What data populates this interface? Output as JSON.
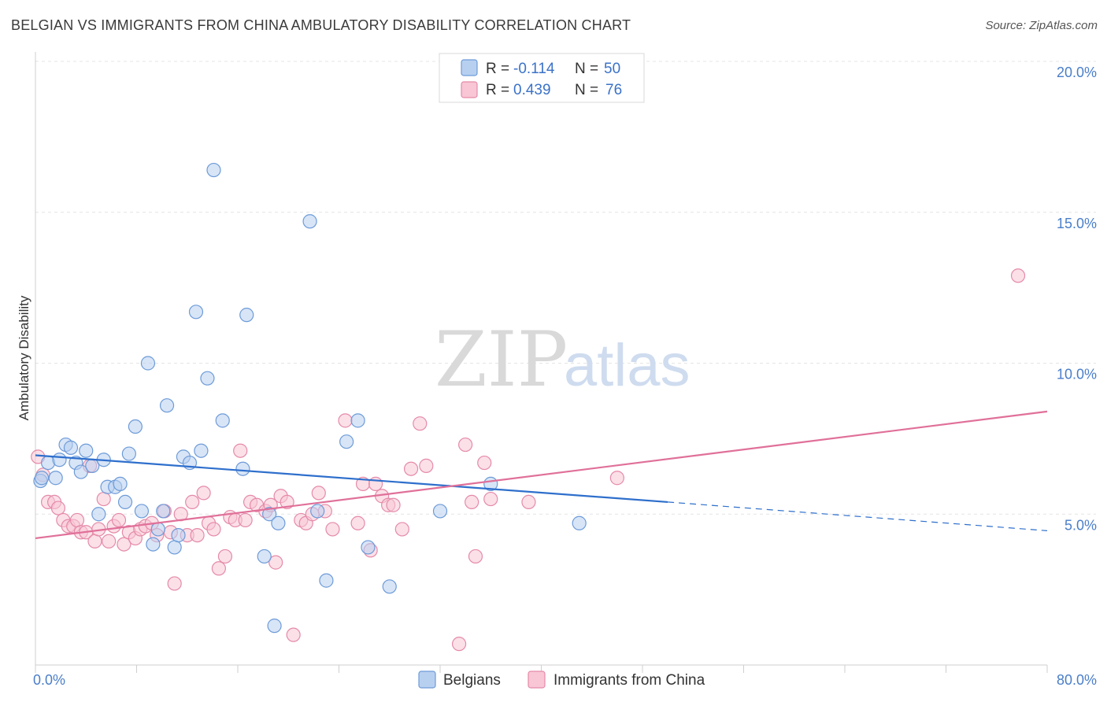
{
  "title": "BELGIAN VS IMMIGRANTS FROM CHINA AMBULATORY DISABILITY CORRELATION CHART",
  "source": "Source: ZipAtlas.com",
  "watermark": {
    "zip": "ZIP",
    "atlas": "atlas"
  },
  "legend": {
    "r_label": "R =",
    "n_label": "N =",
    "rows": [
      {
        "r": "-0.114",
        "n": "50"
      },
      {
        "r": "0.439",
        "n": "76"
      }
    ]
  },
  "colors": {
    "belgians_fill": "#b8d0f0",
    "belgians_stroke": "#6d9bd8",
    "belgians_line": "#2e6fcc",
    "china_fill": "#f8c6d5",
    "china_stroke": "#e58aa8",
    "china_line": "#e07099",
    "axis_text": "#4a7ec9",
    "grid": "#e4e4e4"
  },
  "chart_data": {
    "type": "scatter",
    "title": "BELGIAN VS IMMIGRANTS FROM CHINA AMBULATORY DISABILITY CORRELATION CHART",
    "xlabel": "",
    "ylabel": "Ambulatory Disability",
    "xlim": [
      0,
      80
    ],
    "ylim": [
      0,
      20
    ],
    "x_tick_labels": [
      "0.0%",
      "80.0%"
    ],
    "y_ticks": [
      5,
      10,
      15,
      20
    ],
    "y_tick_labels": [
      "5.0%",
      "10.0%",
      "15.0%",
      "20.0%"
    ],
    "grid": true,
    "legend_position": "bottom-center",
    "series": [
      {
        "name": "Belgians",
        "r": -0.114,
        "n": 50,
        "trend": {
          "x": [
            0,
            50
          ],
          "y": [
            6.95,
            5.4
          ],
          "dashed_to": [
            80,
            4.45
          ]
        },
        "points": [
          [
            0.4,
            6.1
          ],
          [
            0.5,
            6.2
          ],
          [
            1.0,
            6.7
          ],
          [
            1.6,
            6.2
          ],
          [
            1.9,
            6.8
          ],
          [
            2.4,
            7.3
          ],
          [
            2.8,
            7.2
          ],
          [
            3.2,
            6.7
          ],
          [
            3.6,
            6.4
          ],
          [
            4.0,
            7.1
          ],
          [
            4.5,
            6.6
          ],
          [
            5.0,
            5.0
          ],
          [
            5.4,
            6.8
          ],
          [
            5.7,
            5.9
          ],
          [
            6.3,
            5.9
          ],
          [
            6.7,
            6.0
          ],
          [
            7.1,
            5.4
          ],
          [
            7.4,
            7.0
          ],
          [
            7.9,
            7.9
          ],
          [
            8.4,
            5.1
          ],
          [
            8.9,
            10.0
          ],
          [
            9.3,
            4.0
          ],
          [
            9.7,
            4.5
          ],
          [
            10.1,
            5.1
          ],
          [
            10.4,
            8.6
          ],
          [
            11.0,
            3.9
          ],
          [
            11.3,
            4.3
          ],
          [
            11.7,
            6.9
          ],
          [
            12.2,
            6.7
          ],
          [
            12.7,
            11.7
          ],
          [
            13.1,
            7.1
          ],
          [
            13.6,
            9.5
          ],
          [
            14.1,
            16.4
          ],
          [
            14.8,
            8.1
          ],
          [
            16.4,
            6.5
          ],
          [
            16.7,
            11.6
          ],
          [
            18.1,
            3.6
          ],
          [
            18.5,
            5.0
          ],
          [
            18.9,
            1.3
          ],
          [
            19.2,
            4.7
          ],
          [
            21.7,
            14.7
          ],
          [
            22.3,
            5.1
          ],
          [
            23.0,
            2.8
          ],
          [
            24.6,
            7.4
          ],
          [
            25.5,
            8.1
          ],
          [
            26.3,
            3.9
          ],
          [
            28.0,
            2.6
          ],
          [
            32.0,
            5.1
          ],
          [
            36.0,
            6.0
          ],
          [
            43.0,
            4.7
          ]
        ]
      },
      {
        "name": "Immigrants from China",
        "r": 0.439,
        "n": 76,
        "trend": {
          "x": [
            0,
            80
          ],
          "y": [
            4.2,
            8.4
          ]
        },
        "points": [
          [
            0.2,
            6.9
          ],
          [
            0.6,
            6.3
          ],
          [
            1.0,
            5.4
          ],
          [
            1.5,
            5.4
          ],
          [
            1.8,
            5.2
          ],
          [
            2.2,
            4.8
          ],
          [
            2.6,
            4.6
          ],
          [
            3.0,
            4.6
          ],
          [
            3.3,
            4.8
          ],
          [
            3.6,
            4.4
          ],
          [
            4.0,
            4.4
          ],
          [
            4.3,
            6.6
          ],
          [
            4.7,
            4.1
          ],
          [
            5.0,
            4.5
          ],
          [
            5.4,
            5.5
          ],
          [
            5.8,
            4.1
          ],
          [
            6.2,
            4.6
          ],
          [
            6.6,
            4.8
          ],
          [
            7.0,
            4.0
          ],
          [
            7.4,
            4.4
          ],
          [
            7.9,
            4.2
          ],
          [
            8.3,
            4.5
          ],
          [
            8.7,
            4.6
          ],
          [
            9.2,
            4.7
          ],
          [
            9.6,
            4.3
          ],
          [
            10.2,
            5.1
          ],
          [
            10.7,
            4.4
          ],
          [
            11.0,
            2.7
          ],
          [
            11.5,
            5.0
          ],
          [
            12.0,
            4.3
          ],
          [
            12.4,
            5.4
          ],
          [
            12.8,
            4.3
          ],
          [
            13.3,
            5.7
          ],
          [
            13.7,
            4.7
          ],
          [
            14.1,
            4.5
          ],
          [
            14.5,
            3.2
          ],
          [
            15.0,
            3.6
          ],
          [
            15.4,
            4.9
          ],
          [
            15.8,
            4.8
          ],
          [
            16.2,
            7.1
          ],
          [
            16.6,
            4.8
          ],
          [
            17.0,
            5.4
          ],
          [
            17.5,
            5.3
          ],
          [
            18.2,
            5.1
          ],
          [
            18.6,
            5.3
          ],
          [
            19.0,
            3.4
          ],
          [
            19.4,
            5.6
          ],
          [
            19.9,
            5.4
          ],
          [
            20.4,
            1.0
          ],
          [
            21.0,
            4.8
          ],
          [
            21.4,
            4.7
          ],
          [
            21.9,
            5.0
          ],
          [
            22.4,
            5.7
          ],
          [
            22.9,
            5.1
          ],
          [
            23.5,
            4.5
          ],
          [
            24.5,
            8.1
          ],
          [
            25.5,
            4.7
          ],
          [
            25.9,
            6.0
          ],
          [
            26.5,
            3.8
          ],
          [
            26.9,
            6.0
          ],
          [
            27.4,
            5.6
          ],
          [
            27.9,
            5.3
          ],
          [
            28.3,
            5.3
          ],
          [
            29.0,
            4.5
          ],
          [
            29.7,
            6.5
          ],
          [
            30.4,
            8.0
          ],
          [
            30.9,
            6.6
          ],
          [
            33.5,
            0.7
          ],
          [
            34.0,
            7.3
          ],
          [
            34.5,
            5.4
          ],
          [
            34.8,
            3.6
          ],
          [
            35.5,
            6.7
          ],
          [
            36.0,
            5.5
          ],
          [
            39.0,
            5.4
          ],
          [
            46.0,
            6.2
          ],
          [
            77.7,
            12.9
          ]
        ]
      }
    ]
  },
  "bottom_legend": [
    "Belgians",
    "Immigrants from China"
  ]
}
